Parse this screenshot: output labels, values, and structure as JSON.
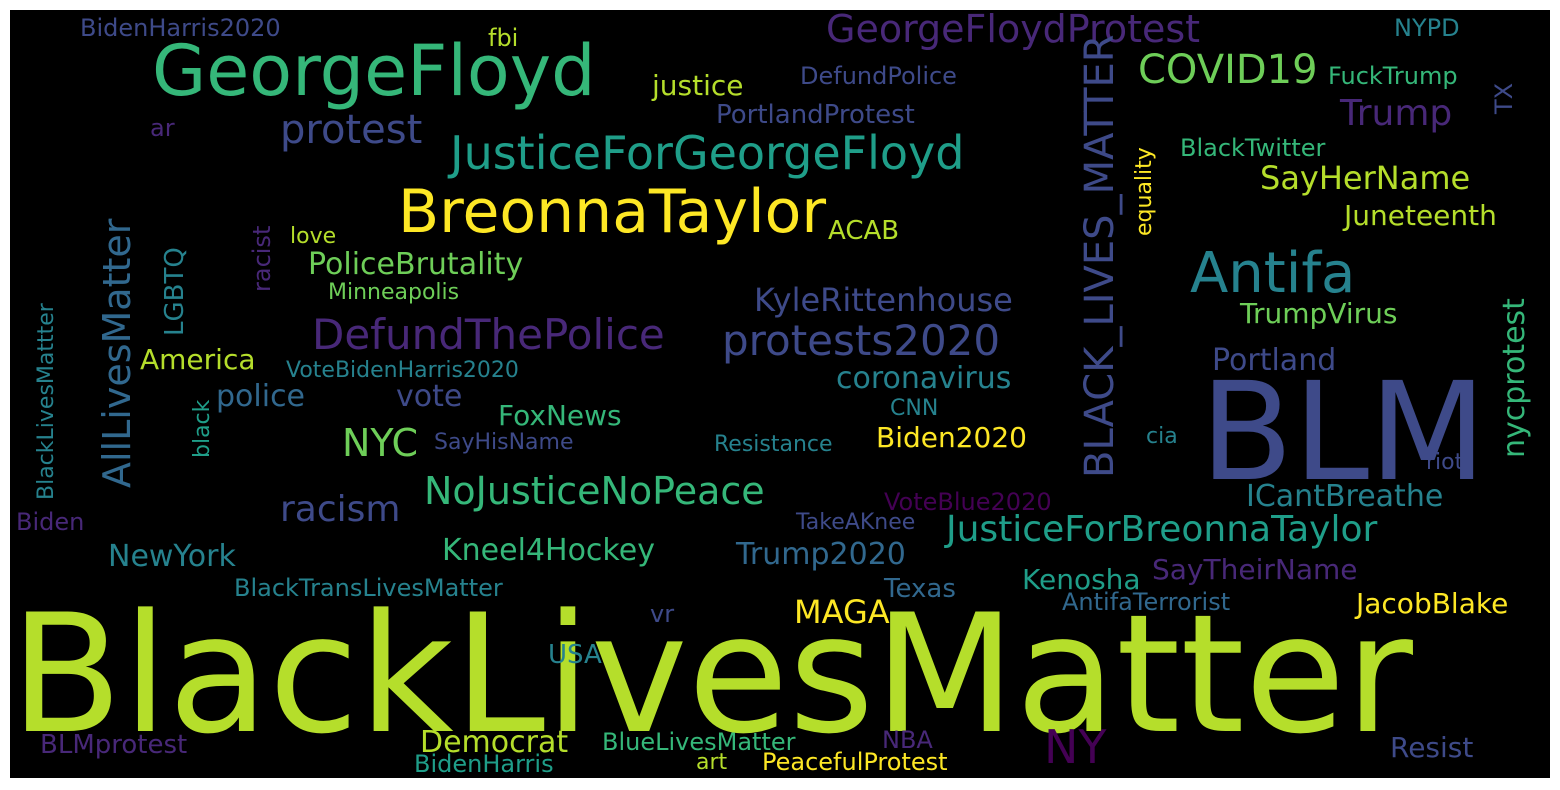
{
  "colors": {
    "background": "#000000",
    "lime": "#b5de2b",
    "yellow": "#fde725",
    "green": "#35b779",
    "lightgreen": "#6ece58",
    "teal": "#1f9e89",
    "tealblue": "#26828e",
    "blue": "#31688e",
    "indigo": "#3e4a89",
    "purple": "#482878",
    "darkpurple": "#440154"
  },
  "words": [
    "BlackLivesMatter",
    "BLM",
    "GeorgeFloyd",
    "BreonnaTaylor",
    "JusticeForGeorgeFloyd",
    "Antifa",
    "DefundThePolice",
    "protests2020",
    "GeorgeFloydProtest",
    "BLACK_LIVES_MATTER",
    "COVID19",
    "protest",
    "NoJusticeNoPeace",
    "JusticeForBreonnaTaylor",
    "AllLivesMatter",
    "NYC",
    "NY",
    "racism",
    "Trump",
    "SayHerName",
    "KyleRittenhouse",
    "PoliceBrutality",
    "coronavirus",
    "nycprotest",
    "ICantBreathe",
    "Kneel4Hockey",
    "Trump2020",
    "MAGA",
    "NewYork",
    "Juneteenth",
    "Portland",
    "TrumpVirus",
    "police",
    "vote",
    "Democrat",
    "Resist",
    "JacobBlake",
    "Kenosha",
    "SayTheirName",
    "America",
    "Biden2020",
    "FoxNews",
    "BlueLivesMatter",
    "PeacefulProtest",
    "BLMprotest",
    "BidenHarris",
    "justice",
    "DefundPolice",
    "PortlandProtest",
    "FuckTrump",
    "BlackTwitter",
    "BidenHarris2020",
    "fbi",
    "NYPD",
    "ACAB",
    "love",
    "Minneapolis",
    "VoteBidenHarris2020",
    "LGBTQ",
    "racist",
    "equality",
    "TX",
    "ar",
    "SayHisName",
    "Resistance",
    "CNN",
    "cia",
    "riot",
    "VoteBlue2020",
    "TakeAKnee",
    "Biden",
    "BlackTransLivesMatter",
    "Texas",
    "AntifaTerrorist",
    "USA",
    "vr",
    "NBA",
    "art",
    "black",
    "BlackLivesMattter"
  ]
}
